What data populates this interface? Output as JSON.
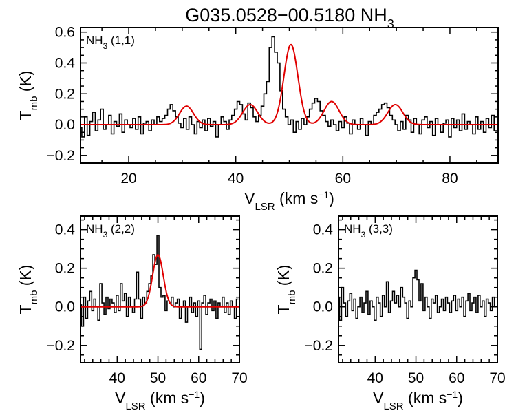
{
  "figure": {
    "title_main": "G035.0528−00.5180 NH",
    "title_sub": "3"
  },
  "chart_data": [
    {
      "type": "line",
      "label_main": "NH",
      "label_sub": "3",
      "label_transition": " (1,1)",
      "xlabel_main": "V",
      "xlabel_sub": "LSR",
      "xlabel_units": " (km s",
      "xlabel_sup": "−1",
      "xlabel_close": ")",
      "ylabel_main": "T",
      "ylabel_sub": "mb",
      "ylabel_units": " (K)",
      "xlim": [
        11,
        89
      ],
      "ylim": [
        -0.25,
        0.63
      ],
      "xticks": [
        20,
        40,
        60,
        80
      ],
      "yticks": [
        -0.2,
        0.0,
        0.2,
        0.4,
        0.6
      ],
      "ytick_labels": [
        "−0.2",
        "0.0",
        "0.2",
        "0.4",
        "0.6"
      ],
      "fit_components": [
        {
          "center": 30.8,
          "amplitude": 0.12,
          "sigma": 1.3
        },
        {
          "center": 42.7,
          "amplitude": 0.13,
          "sigma": 1.4
        },
        {
          "center": 50.3,
          "amplitude": 0.52,
          "sigma": 1.3
        },
        {
          "center": 57.9,
          "amplitude": 0.15,
          "sigma": 1.4
        },
        {
          "center": 69.8,
          "amplitude": 0.13,
          "sigma": 1.4
        }
      ],
      "series": [
        {
          "x": [
            11.0,
            11.5,
            12.0,
            12.5,
            13.0,
            13.5,
            14.0,
            14.5,
            15.0,
            15.5,
            16.0,
            16.5,
            17.0,
            17.5,
            18.0,
            18.5,
            19.0,
            19.5,
            20.0,
            20.5,
            21.0,
            21.5,
            22.0,
            22.5,
            23.0,
            23.5,
            24.0,
            24.5,
            25.0,
            25.5,
            26.0,
            26.5,
            27.0,
            27.5,
            28.0,
            28.5,
            29.0,
            29.5,
            30.0,
            30.5,
            31.0,
            31.5,
            32.0,
            32.5,
            33.0,
            33.5,
            34.0,
            34.5,
            35.0,
            35.5,
            36.0,
            36.5,
            37.0,
            37.5,
            38.0,
            38.5,
            39.0,
            39.5,
            40.0,
            40.5,
            41.0,
            41.5,
            42.0,
            42.5,
            43.0,
            43.5,
            44.0,
            44.5,
            45.0,
            45.5,
            46.0,
            46.5,
            47.0,
            47.5,
            48.0,
            48.5,
            49.0,
            49.5,
            50.0,
            50.5,
            51.0,
            51.5,
            52.0,
            52.5,
            53.0,
            53.5,
            54.0,
            54.5,
            55.0,
            55.5,
            56.0,
            56.5,
            57.0,
            57.5,
            58.0,
            58.5,
            59.0,
            59.5,
            60.0,
            60.5,
            61.0,
            61.5,
            62.0,
            62.5,
            63.0,
            63.5,
            64.0,
            64.5,
            65.0,
            65.5,
            66.0,
            66.5,
            67.0,
            67.5,
            68.0,
            68.5,
            69.0,
            69.5,
            70.0,
            70.5,
            71.0,
            71.5,
            72.0,
            72.5,
            73.0,
            73.5,
            74.0,
            74.5,
            75.0,
            75.5,
            76.0,
            76.5,
            77.0,
            77.5,
            78.0,
            78.5,
            79.0,
            79.5,
            80.0,
            80.5,
            81.0,
            81.5,
            82.0,
            82.5,
            83.0,
            83.5,
            84.0,
            84.5,
            85.0,
            85.5,
            86.0,
            86.5,
            87.0,
            87.5,
            88.0,
            88.5
          ],
          "y": [
            -0.02,
            -0.08,
            0.05,
            -0.07,
            0.02,
            0.08,
            -0.04,
            0.03,
            0.1,
            -0.03,
            0.0,
            0.06,
            -0.06,
            0.02,
            -0.01,
            0.07,
            -0.05,
            0.03,
            0.0,
            -0.02,
            0.04,
            -0.03,
            0.05,
            -0.06,
            0.01,
            0.02,
            -0.04,
            0.03,
            0.0,
            0.05,
            0.02,
            0.04,
            0.06,
            0.1,
            0.13,
            0.09,
            0.05,
            0.01,
            -0.02,
            0.04,
            -0.03,
            0.05,
            0.0,
            -0.06,
            0.02,
            -0.02,
            0.03,
            -0.04,
            0.04,
            -0.01,
            0.02,
            -0.08,
            0.0,
            0.05,
            0.02,
            -0.03,
            0.03,
            0.06,
            0.1,
            0.15,
            0.13,
            0.07,
            0.03,
            0.14,
            0.11,
            0.05,
            0.02,
            0.06,
            0.12,
            0.2,
            0.28,
            0.5,
            0.57,
            0.47,
            0.4,
            0.22,
            0.1,
            0.05,
            0.0,
            0.03,
            -0.05,
            0.02,
            -0.03,
            0.04,
            0.0,
            0.05,
            0.1,
            0.14,
            0.17,
            0.15,
            0.09,
            0.06,
            0.02,
            -0.01,
            0.03,
            0.0,
            -0.04,
            0.02,
            -0.02,
            0.05,
            0.01,
            -0.06,
            0.03,
            0.0,
            -0.03,
            0.04,
            0.0,
            -0.07,
            0.02,
            0.0,
            0.06,
            0.08,
            0.1,
            0.13,
            0.14,
            0.11,
            0.06,
            0.03,
            0.0,
            -0.04,
            0.02,
            -0.03,
            0.06,
            0.03,
            -0.05,
            0.04,
            0.0,
            -0.06,
            0.03,
            0.05,
            -0.02,
            0.02,
            -0.07,
            0.04,
            0.0,
            -0.05,
            0.01,
            0.03,
            -0.08,
            0.04,
            -0.02,
            0.03,
            -0.04,
            0.07,
            -0.03,
            0.02,
            0.0,
            -0.06,
            0.05,
            -0.03,
            0.02,
            -0.05,
            0.04,
            -0.02,
            0.06,
            -0.04
          ]
        }
      ]
    },
    {
      "type": "line",
      "label_main": "NH",
      "label_sub": "3",
      "label_transition": " (2,2)",
      "xlabel_main": "V",
      "xlabel_sub": "LSR",
      "xlabel_units": " (km s",
      "xlabel_sup": "−1",
      "xlabel_close": ")",
      "ylabel_main": "T",
      "ylabel_sub": "mb",
      "ylabel_units": " (K)",
      "xlim": [
        31,
        70
      ],
      "ylim": [
        -0.29,
        0.47
      ],
      "xticks": [
        40,
        50,
        60,
        70
      ],
      "yticks": [
        -0.2,
        0.0,
        0.2,
        0.4
      ],
      "ytick_labels": [
        "−0.2",
        "0.0",
        "0.2",
        "0.4"
      ],
      "fit_components": [
        {
          "center": 50.0,
          "amplitude": 0.27,
          "sigma": 1.3
        }
      ],
      "series": [
        {
          "x": [
            31.0,
            31.5,
            32.0,
            32.5,
            33.0,
            33.5,
            34.0,
            34.5,
            35.0,
            35.5,
            36.0,
            36.5,
            37.0,
            37.5,
            38.0,
            38.5,
            39.0,
            39.5,
            40.0,
            40.5,
            41.0,
            41.5,
            42.0,
            42.5,
            43.0,
            43.5,
            44.0,
            44.5,
            45.0,
            45.5,
            46.0,
            46.5,
            47.0,
            47.5,
            48.0,
            48.5,
            49.0,
            49.5,
            50.0,
            50.5,
            51.0,
            51.5,
            52.0,
            52.5,
            53.0,
            53.5,
            54.0,
            54.5,
            55.0,
            55.5,
            56.0,
            56.5,
            57.0,
            57.5,
            58.0,
            58.5,
            59.0,
            59.5,
            60.0,
            60.5,
            61.0,
            61.5,
            62.0,
            62.5,
            63.0,
            63.5,
            64.0,
            64.5,
            65.0,
            65.5,
            66.0,
            66.5,
            67.0,
            67.5,
            68.0,
            68.5,
            69.0,
            69.5
          ],
          "y": [
            0.01,
            -0.1,
            0.05,
            -0.06,
            0.03,
            0.08,
            -0.02,
            0.04,
            0.0,
            -0.07,
            0.12,
            0.02,
            -0.04,
            0.05,
            -0.01,
            0.04,
            0.02,
            -0.03,
            0.06,
            -0.02,
            0.12,
            0.03,
            0.07,
            -0.05,
            0.05,
            0.0,
            -0.03,
            0.04,
            0.18,
            0.04,
            -0.06,
            0.05,
            0.02,
            0.08,
            0.12,
            0.16,
            0.27,
            0.22,
            0.37,
            0.1,
            0.05,
            0.06,
            -0.02,
            0.03,
            0.02,
            0.05,
            0.0,
            0.02,
            0.04,
            -0.06,
            0.0,
            0.03,
            -0.08,
            0.0,
            0.05,
            -0.03,
            0.02,
            -0.05,
            0.03,
            -0.22,
            0.02,
            0.06,
            -0.04,
            0.02,
            0.04,
            -0.02,
            0.03,
            -0.06,
            0.02,
            0.0,
            0.05,
            -0.03,
            0.02,
            -0.04,
            0.03,
            0.0,
            -0.06,
            0.04
          ]
        }
      ]
    },
    {
      "type": "line",
      "label_main": "NH",
      "label_sub": "3",
      "label_transition": " (3,3)",
      "xlabel_main": "V",
      "xlabel_sub": "LSR",
      "xlabel_units": " (km s",
      "xlabel_sup": "−1",
      "xlabel_close": ")",
      "ylabel_main": "T",
      "ylabel_sub": "mb",
      "ylabel_units": " (K)",
      "xlim": [
        31,
        70
      ],
      "ylim": [
        -0.29,
        0.47
      ],
      "xticks": [
        40,
        50,
        60,
        70
      ],
      "yticks": [
        -0.2,
        0.0,
        0.2,
        0.4
      ],
      "ytick_labels": [
        "−0.2",
        "0.0",
        "0.2",
        "0.4"
      ],
      "fit_components": [],
      "series": [
        {
          "x": [
            31.0,
            31.5,
            32.0,
            32.5,
            33.0,
            33.5,
            34.0,
            34.5,
            35.0,
            35.5,
            36.0,
            36.5,
            37.0,
            37.5,
            38.0,
            38.5,
            39.0,
            39.5,
            40.0,
            40.5,
            41.0,
            41.5,
            42.0,
            42.5,
            43.0,
            43.5,
            44.0,
            44.5,
            45.0,
            45.5,
            46.0,
            46.5,
            47.0,
            47.5,
            48.0,
            48.5,
            49.0,
            49.5,
            50.0,
            50.5,
            51.0,
            51.5,
            52.0,
            52.5,
            53.0,
            53.5,
            54.0,
            54.5,
            55.0,
            55.5,
            56.0,
            56.5,
            57.0,
            57.5,
            58.0,
            58.5,
            59.0,
            59.5,
            60.0,
            60.5,
            61.0,
            61.5,
            62.0,
            62.5,
            63.0,
            63.5,
            64.0,
            64.5,
            65.0,
            65.5,
            66.0,
            66.5,
            67.0,
            67.5,
            68.0,
            68.5,
            69.0,
            69.5
          ],
          "y": [
            0.05,
            -0.07,
            0.1,
            0.02,
            -0.05,
            0.03,
            0.07,
            -0.02,
            0.04,
            -0.06,
            0.0,
            0.05,
            -0.03,
            0.02,
            0.08,
            -0.04,
            0.03,
            0.0,
            -0.07,
            0.05,
            0.02,
            -0.05,
            0.06,
            0.0,
            0.13,
            -0.03,
            0.03,
            0.08,
            0.02,
            0.06,
            0.0,
            0.1,
            0.05,
            0.02,
            -0.06,
            0.03,
            0.0,
            0.15,
            0.19,
            0.14,
            0.03,
            0.12,
            -0.02,
            0.05,
            0.0,
            -0.06,
            0.04,
            0.02,
            0.06,
            -0.03,
            0.0,
            0.04,
            -0.02,
            0.05,
            0.02,
            -0.03,
            0.03,
            0.06,
            -0.02,
            0.04,
            0.0,
            0.05,
            -0.05,
            0.03,
            0.07,
            -0.02,
            0.02,
            0.05,
            -0.03,
            0.06,
            0.0,
            0.03,
            -0.05,
            0.04,
            0.02,
            -0.02,
            0.05,
            0.0
          ]
        }
      ]
    }
  ]
}
